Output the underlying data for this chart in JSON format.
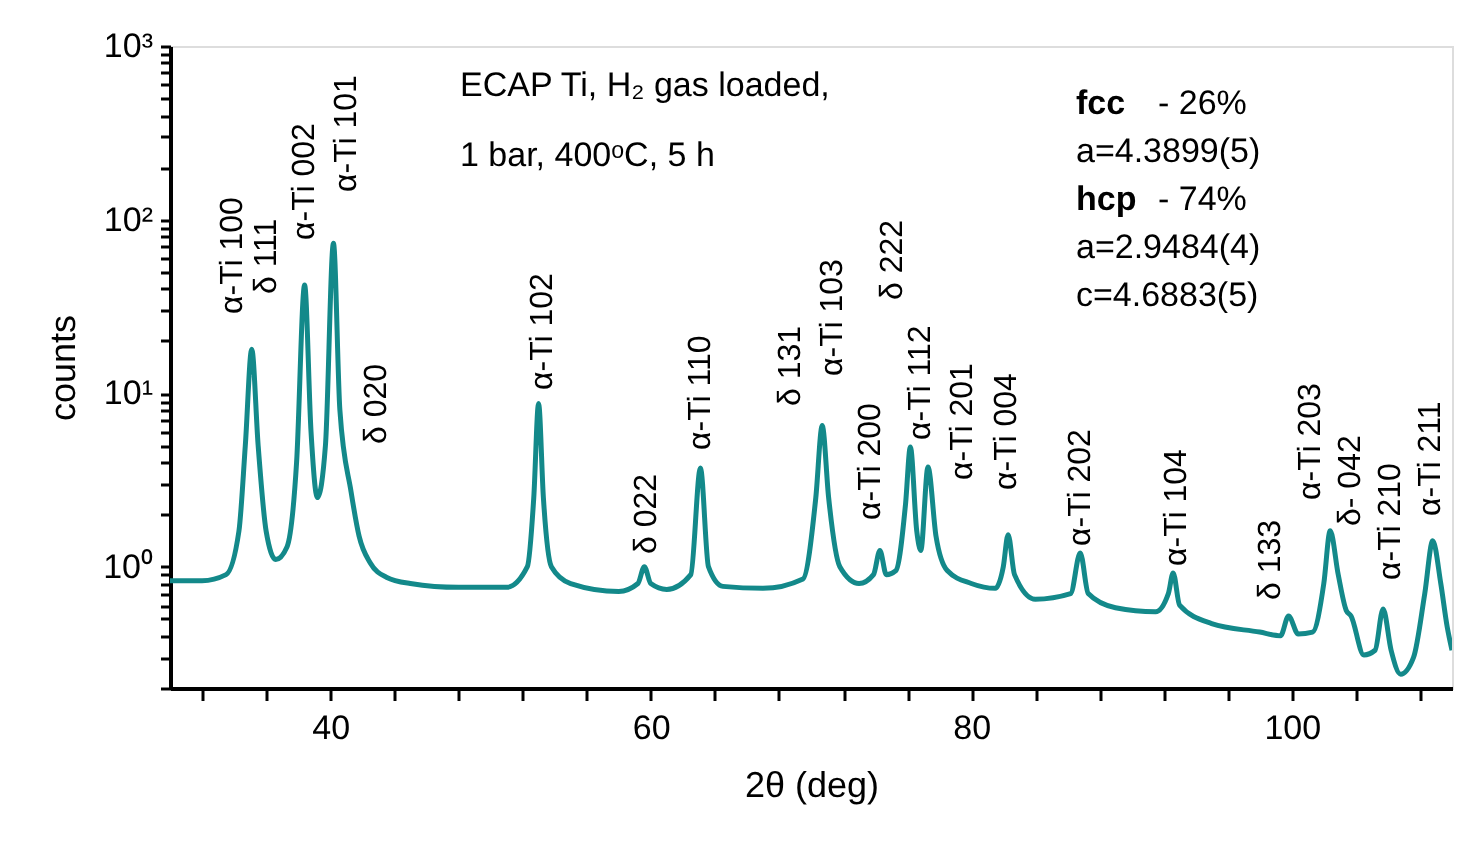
{
  "chart_data": {
    "type": "line",
    "xlabel": "2θ (deg)",
    "ylabel": "counts",
    "log": "y",
    "grid": false,
    "marker": "none",
    "line_style": "solid",
    "xlim": [
      30,
      110
    ],
    "ylim": [
      0.2,
      1000
    ],
    "xticks": [
      {
        "value": 32,
        "label": null
      },
      {
        "value": 36,
        "label": null
      },
      40,
      {
        "value": 44,
        "label": null
      },
      {
        "value": 48,
        "label": null
      },
      {
        "value": 52,
        "label": null
      },
      {
        "value": 56,
        "label": null
      },
      60,
      {
        "value": 64,
        "label": null
      },
      {
        "value": 68,
        "label": null
      },
      {
        "value": 72,
        "label": null
      },
      {
        "value": 76,
        "label": null
      },
      80,
      {
        "value": 84,
        "label": null
      },
      {
        "value": 88,
        "label": null
      },
      {
        "value": 92,
        "label": null
      },
      {
        "value": 96,
        "label": null
      },
      100,
      {
        "value": 104,
        "label": null
      },
      {
        "value": 108,
        "label": null
      }
    ],
    "yticks": [
      {
        "value": 0.2,
        "label": null
      },
      {
        "value": 0.3,
        "label": null
      },
      {
        "value": 0.4,
        "label": null
      },
      {
        "value": 0.5,
        "label": null
      },
      {
        "value": 0.6,
        "label": null
      },
      {
        "value": 0.7,
        "label": null
      },
      {
        "value": 0.8,
        "label": null
      },
      {
        "value": 0.9,
        "label": null
      },
      {
        "value": 1,
        "label": "10⁰"
      },
      {
        "value": 2,
        "label": null
      },
      {
        "value": 3,
        "label": null
      },
      {
        "value": 4,
        "label": null
      },
      {
        "value": 5,
        "label": null
      },
      {
        "value": 6,
        "label": null
      },
      {
        "value": 7,
        "label": null
      },
      {
        "value": 8,
        "label": null
      },
      {
        "value": 9,
        "label": null
      },
      {
        "value": 10,
        "label": "10¹"
      },
      {
        "value": 20,
        "label": null
      },
      {
        "value": 30,
        "label": null
      },
      {
        "value": 40,
        "label": null
      },
      {
        "value": 50,
        "label": null
      },
      {
        "value": 60,
        "label": null
      },
      {
        "value": 70,
        "label": null
      },
      {
        "value": 80,
        "label": null
      },
      {
        "value": 90,
        "label": null
      },
      {
        "value": 100,
        "label": "10²"
      },
      {
        "value": 200,
        "label": null
      },
      {
        "value": 300,
        "label": null
      },
      {
        "value": 400,
        "label": null
      },
      {
        "value": 500,
        "label": null
      },
      {
        "value": 600,
        "label": null
      },
      {
        "value": 700,
        "label": null
      },
      {
        "value": 800,
        "label": null
      },
      {
        "value": 900,
        "label": null
      },
      {
        "value": 1000,
        "label": "10³"
      }
    ],
    "series": [
      {
        "color": "#13898a",
        "x": [
          30,
          32,
          33.5,
          34.3,
          34.7,
          35.1,
          35.5,
          36.0,
          36.6,
          37.3,
          37.9,
          38.4,
          38.8,
          39.2,
          39.7,
          40.2,
          40.6,
          41.3,
          41.8,
          42.5,
          43.5,
          45,
          48,
          51,
          52.3,
          52.7,
          53.0,
          53.3,
          53.8,
          55,
          58,
          59.2,
          59.6,
          60.0,
          61,
          62.5,
          63.1,
          63.6,
          64.5,
          67,
          69.5,
          70.3,
          70.7,
          71.1,
          71.8,
          73,
          73.9,
          74.3,
          74.7,
          75.3,
          75.9,
          76.2,
          76.6,
          76.85,
          77.3,
          77.8,
          78.5,
          80,
          81.5,
          82.0,
          82.3,
          82.7,
          84,
          86.2,
          86.8,
          87.3,
          89,
          91.5,
          92.3,
          92.6,
          93,
          95,
          98,
          99.3,
          99.8,
          100.4,
          101.3,
          102.0,
          102.4,
          102.9,
          103.4,
          103.7,
          104.5,
          105.2,
          105.7,
          106.2,
          106.8,
          107.6,
          108.3,
          108.8,
          109.3,
          109.7,
          110
        ],
        "values": [
          0.83,
          0.83,
          0.9,
          1.6,
          5,
          17.9,
          5,
          1.6,
          1.1,
          1.3,
          4,
          42,
          6,
          2.5,
          5,
          73,
          8,
          2.7,
          1.5,
          1.05,
          0.87,
          0.8,
          0.76,
          0.76,
          1.0,
          2.5,
          8.7,
          2.5,
          1.0,
          0.8,
          0.72,
          0.8,
          1.0,
          0.8,
          0.74,
          0.9,
          3.7,
          1.0,
          0.77,
          0.75,
          0.85,
          2.5,
          6.5,
          2.5,
          1.0,
          0.8,
          0.9,
          1.24,
          0.9,
          0.95,
          2.3,
          4.9,
          1.6,
          1.24,
          3.75,
          1.5,
          0.95,
          0.8,
          0.75,
          1.0,
          1.53,
          0.9,
          0.65,
          0.7,
          1.2,
          0.7,
          0.58,
          0.55,
          0.7,
          0.92,
          0.6,
          0.47,
          0.42,
          0.4,
          0.52,
          0.41,
          0.42,
          0.8,
          1.61,
          0.9,
          0.56,
          0.52,
          0.31,
          0.33,
          0.57,
          0.33,
          0.24,
          0.3,
          0.7,
          1.41,
          0.8,
          0.45,
          0.33
        ]
      }
    ],
    "annotations": [
      "ECAP Ti, H₂ gas loaded,",
      "1 bar, 400ᵒC, 5 h",
      "fcc  - 26%",
      "a=4.3899(5)",
      "hcp - 74%",
      "a=2.9484(4)",
      "c=4.6883(5)",
      "α-Ti 100",
      "δ 111",
      "α-Ti 002",
      "α-Ti 101",
      "δ 020",
      "α-Ti 102",
      "δ 022",
      "α-Ti 110",
      "δ 131",
      "α-Ti 103",
      "α-Ti 200",
      "δ 222",
      "α-Ti 112",
      "α-Ti 201",
      "α-Ti 004",
      "α-Ti 202",
      "α-Ti 104",
      "δ 133",
      "α-Ti 203",
      "δ- 042",
      "α-Ti 210",
      "α-Ti 211"
    ]
  }
}
